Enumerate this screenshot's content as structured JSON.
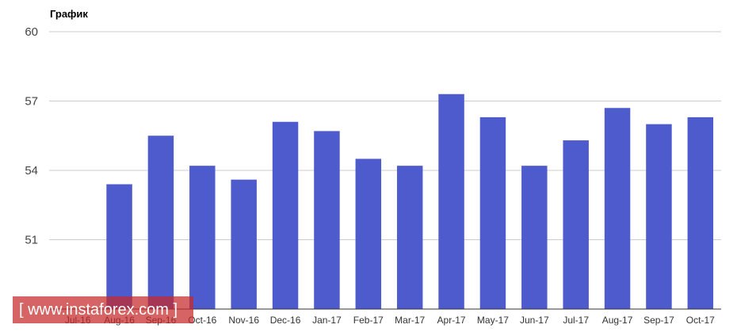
{
  "chart_data": {
    "type": "bar",
    "title": "График",
    "categories": [
      "Jul-16",
      "Aug-16",
      "Sep-16",
      "Oct-16",
      "Nov-16",
      "Dec-16",
      "Jan-17",
      "Feb-17",
      "Mar-17",
      "Apr-17",
      "May-17",
      "Jun-17",
      "Jul-17",
      "Aug-17",
      "Sep-17",
      "Oct-17"
    ],
    "values": [
      null,
      53.4,
      55.5,
      54.2,
      53.6,
      56.1,
      55.7,
      54.5,
      54.2,
      57.3,
      56.3,
      54.2,
      55.3,
      56.7,
      56.0,
      56.3
    ],
    "ylim": [
      48,
      60
    ],
    "yticks": [
      51,
      54,
      57,
      60
    ],
    "grid": true,
    "bar_color": "#4d5bcc"
  },
  "watermark": {
    "text": "[ www.instaforex.com ]"
  }
}
